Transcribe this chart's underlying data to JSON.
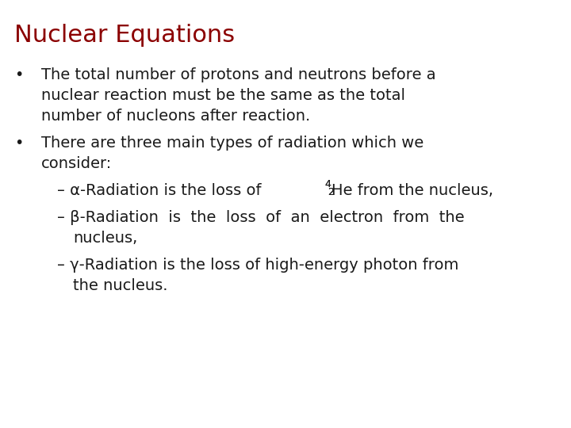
{
  "title": "Nuclear Equations",
  "title_color": "#8B0000",
  "title_fontsize": 22,
  "title_bold": false,
  "background_color": "#ffffff",
  "text_color": "#1a1a1a",
  "body_fontsize": 14,
  "bullet1_line1": "The total number of protons and neutrons before a",
  "bullet1_line2": "nuclear reaction must be the same as the total",
  "bullet1_line3": "number of nucleons after reaction.",
  "bullet2_line1": "There are three main types of radiation which we",
  "bullet2_line2": "consider:",
  "sub1_prefix": "– α-Radiation is the loss of ",
  "sub1_superscript": "4",
  "sub1_subscript": "2",
  "sub1_rest": "He from the nucleus,",
  "sub2_line1": "– β-Radiation  is  the  loss  of  an  electron  from  the",
  "sub2_line2": "nucleus,",
  "sub3_line1": "– γ-Radiation is the loss of high-energy photon from",
  "sub3_line2": "the nucleus."
}
